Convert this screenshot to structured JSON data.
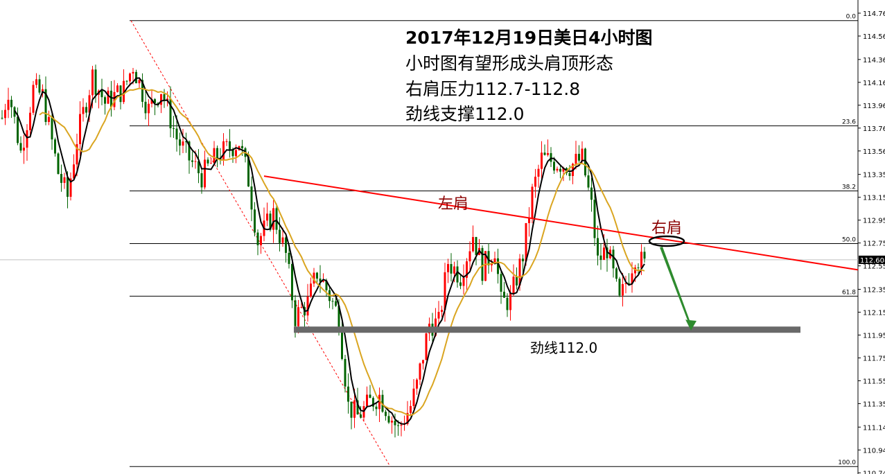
{
  "annotations": {
    "lines": [
      "2017年12月19日美日4小时图",
      "小时图有望形成头肩顶形态",
      "右肩压力112.7-112.8",
      "劲线支撑112.0"
    ],
    "left_shoulder": "左肩",
    "right_shoulder": "右肩",
    "neckline_label": "劲线112.0"
  },
  "chart_data": {
    "type": "candlestick",
    "title": "2017年12月19日美日4小时图",
    "ylim": [
      110.745,
      114.765
    ],
    "y_ticks": [
      "114.765",
      "114.565",
      "114.360",
      "114.160",
      "113.960",
      "113.760",
      "113.560",
      "113.355",
      "113.155",
      "112.955",
      "112.755",
      "112.555",
      "112.350",
      "112.150",
      "111.950",
      "111.750",
      "111.550",
      "111.350",
      "111.145",
      "110.945",
      "110.745"
    ],
    "current_price": "112.608",
    "bar_count": 207,
    "approx_close_path": [
      [
        0,
        113.85
      ],
      [
        2,
        114.1
      ],
      [
        6,
        113.55
      ],
      [
        10,
        114.1
      ],
      [
        13,
        114.04
      ],
      [
        18,
        113.37
      ],
      [
        21,
        113.16
      ],
      [
        24,
        113.67
      ],
      [
        29,
        114.22
      ],
      [
        33,
        113.98
      ],
      [
        39,
        114.1
      ],
      [
        42,
        114.31
      ],
      [
        47,
        113.92
      ],
      [
        51,
        114.1
      ],
      [
        56,
        113.67
      ],
      [
        60,
        113.49
      ],
      [
        64,
        113.34
      ],
      [
        69,
        113.52
      ],
      [
        76,
        113.64
      ],
      [
        79,
        113.31
      ],
      [
        82,
        112.77
      ],
      [
        87,
        113.01
      ],
      [
        91,
        112.65
      ],
      [
        94,
        112.11
      ],
      [
        98,
        112.23
      ],
      [
        101,
        112.5
      ],
      [
        104,
        112.35
      ],
      [
        108,
        112.11
      ],
      [
        111,
        111.33
      ],
      [
        114,
        111.24
      ],
      [
        118,
        111.36
      ],
      [
        121,
        111.42
      ],
      [
        124,
        111.27
      ],
      [
        127,
        111.12
      ],
      [
        131,
        111.33
      ],
      [
        133,
        111.51
      ],
      [
        137,
        112.05
      ],
      [
        140,
        112.05
      ],
      [
        143,
        112.59
      ],
      [
        147,
        112.47
      ],
      [
        151,
        112.83
      ],
      [
        154,
        112.53
      ],
      [
        158,
        112.71
      ],
      [
        160,
        112.23
      ],
      [
        163,
        112.26
      ],
      [
        167,
        112.65
      ],
      [
        170,
        113.19
      ],
      [
        173,
        113.49
      ],
      [
        178,
        113.46
      ],
      [
        182,
        113.43
      ],
      [
        186,
        113.49
      ],
      [
        189,
        113.07
      ],
      [
        191,
        112.59
      ],
      [
        194,
        112.71
      ],
      [
        198,
        112.23
      ],
      [
        200,
        112.41
      ],
      [
        203,
        112.65
      ],
      [
        206,
        112.56
      ]
    ],
    "moving_averages": [
      {
        "period": 5,
        "color": "#000000"
      },
      {
        "period": 13,
        "color": "#daa520"
      }
    ],
    "fibonacci": {
      "high": 114.7,
      "low": 110.8,
      "levels": [
        {
          "label": "0.0",
          "ratio": 0
        },
        {
          "label": "23.6",
          "ratio": 0.236
        },
        {
          "label": "38.2",
          "ratio": 0.382
        },
        {
          "label": "50.0",
          "ratio": 0.5
        },
        {
          "label": "61.8",
          "ratio": 0.618
        },
        {
          "label": "100.0",
          "ratio": 1
        }
      ]
    },
    "trendline": {
      "from": [
        84,
        113.34
      ],
      "to": [
        275,
        112.52
      ],
      "color": "#ff0000"
    },
    "fib_diagonal": {
      "from": [
        42,
        114.7
      ],
      "to": [
        124,
        110.8
      ]
    },
    "neckline": 112.0,
    "colors": {
      "up": "#ff0000",
      "down": "#006400",
      "neckline": "#696969",
      "arrow": "#2e8b2e",
      "ellipse": "#000000",
      "price_line": "#c0c0c0"
    }
  }
}
